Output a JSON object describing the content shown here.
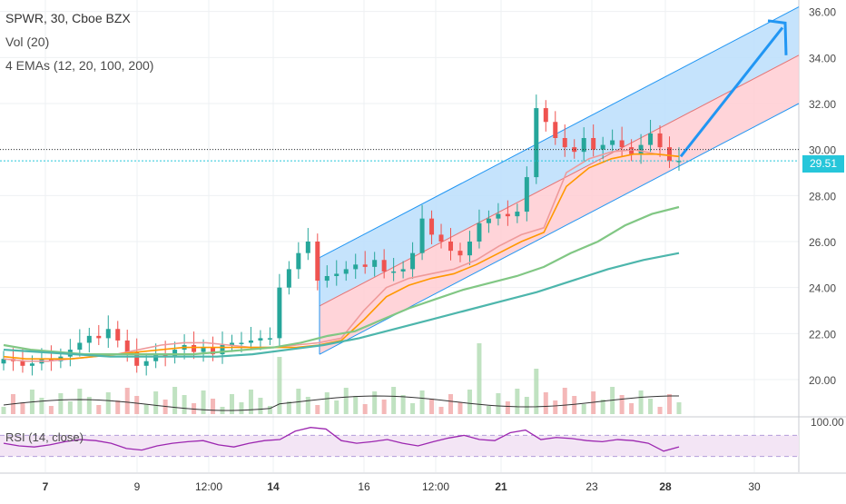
{
  "header": {
    "symbol_line": "SPWR, 30, Cboe BZX",
    "volume_label": "Vol (20)",
    "ema_label": "4 EMAs (12, 20, 100, 200)"
  },
  "rsi_panel": {
    "label": "RSI (14, close)",
    "top_value": "100.00"
  },
  "current_price": "29.51",
  "colors": {
    "channel_upper_fill": "#bbdefb",
    "channel_lower_fill": "#ffcdd2",
    "channel_line": "#2196f3",
    "arrow": "#2196f3",
    "ema_12": "#ef9a9a",
    "ema_20": "#ff9800",
    "ema_100": "#81c784",
    "ema_200": "#4db6ac",
    "candle_up": "#26a69a",
    "candle_down": "#ef5350",
    "rsi_line": "#9c27b0",
    "rsi_band": "#f3e5f5",
    "price_tag": "#26c6da"
  },
  "chart_data": {
    "type": "candlestick",
    "title": "SPWR, 30, Cboe BZX",
    "x_ticks": [
      "7",
      "9",
      "12:00",
      "14",
      "16",
      "12:00",
      "21",
      "23",
      "28",
      "30"
    ],
    "y_ticks": [
      "20.00",
      "22.00",
      "24.00",
      "26.00",
      "28.00",
      "30.00",
      "32.00",
      "34.00",
      "36.00"
    ],
    "ylim": [
      18.5,
      36.5
    ],
    "grid": true,
    "last_price": 29.51,
    "close_series": [
      20.9,
      20.8,
      20.6,
      20.7,
      20.9,
      20.8,
      21.0,
      21.3,
      21.6,
      21.9,
      21.8,
      22.2,
      21.7,
      21.2,
      20.6,
      20.8,
      21.1,
      21.0,
      21.3,
      21.5,
      21.2,
      21.4,
      21.1,
      21.5,
      21.6,
      21.6,
      21.7,
      21.8,
      21.8,
      24.0,
      24.8,
      25.5,
      26.0,
      24.3,
      24.5,
      24.6,
      24.8,
      25.0,
      24.9,
      25.2,
      24.7,
      24.7,
      24.8,
      25.5,
      27.0,
      26.3,
      26.0,
      25.6,
      25.4,
      26.0,
      26.8,
      27.0,
      27.2,
      27.1,
      27.3,
      28.8,
      31.8,
      31.2,
      30.5,
      30.1,
      29.9,
      30.5,
      30.0,
      30.2,
      30.4,
      30.1,
      29.8,
      30.2,
      30.7,
      30.1,
      29.5,
      29.51
    ],
    "series": [
      {
        "name": "EMA 12",
        "values": [
          20.9,
          20.8,
          20.8,
          20.9,
          21.0,
          21.1,
          21.3,
          21.5,
          21.6,
          21.6,
          21.5,
          21.4,
          21.4,
          21.5,
          21.6,
          21.8,
          23.0,
          24.0,
          24.4,
          24.6,
          24.8,
          25.2,
          25.8,
          26.3,
          26.6,
          29.0,
          29.6,
          29.9,
          30.0,
          29.8,
          29.7
        ]
      },
      {
        "name": "EMA 20",
        "values": [
          21.0,
          20.9,
          20.9,
          20.9,
          21.0,
          21.1,
          21.2,
          21.3,
          21.4,
          21.4,
          21.4,
          21.4,
          21.4,
          21.4,
          21.5,
          21.7,
          22.6,
          23.6,
          24.1,
          24.4,
          24.6,
          25.0,
          25.5,
          26.0,
          26.4,
          28.4,
          29.2,
          29.6,
          29.8,
          29.8,
          29.7
        ]
      },
      {
        "name": "EMA 100",
        "values": [
          21.5,
          21.3,
          21.2,
          21.1,
          21.1,
          21.1,
          21.1,
          21.1,
          21.2,
          21.3,
          21.4,
          21.6,
          21.9,
          22.1,
          22.6,
          23.1,
          23.5,
          23.9,
          24.2,
          24.5,
          24.9,
          25.5,
          26.0,
          26.7,
          27.2,
          27.5
        ]
      },
      {
        "name": "EMA 200",
        "values": [
          21.3,
          21.2,
          21.1,
          21.0,
          21.0,
          21.0,
          21.0,
          21.1,
          21.3,
          21.5,
          21.8,
          22.2,
          22.6,
          23.0,
          23.4,
          23.8,
          24.3,
          24.8,
          25.2,
          25.5
        ]
      }
    ],
    "channel": {
      "start_lower": 21.1,
      "start_upper": 25.3,
      "end_lower": 32.0,
      "end_upper": 36.2
    },
    "rsi": {
      "values": [
        55,
        50,
        48,
        52,
        58,
        62,
        60,
        55,
        45,
        42,
        50,
        55,
        58,
        60,
        52,
        48,
        55,
        60,
        62,
        78,
        85,
        82,
        60,
        55,
        58,
        62,
        55,
        50,
        58,
        65,
        70,
        62,
        60,
        75,
        80,
        62,
        66,
        64,
        60,
        58,
        62,
        60,
        55,
        40,
        48
      ],
      "band": [
        30,
        70
      ]
    }
  }
}
